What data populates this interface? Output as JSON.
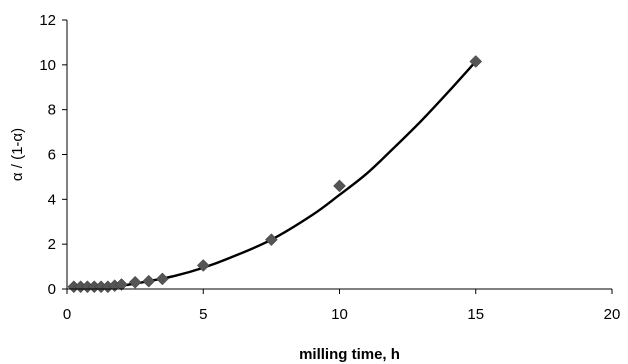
{
  "chart_data": {
    "type": "scatter",
    "xlabel": "milling time, h",
    "ylabel": "α / (1-α)",
    "xlim": [
      0,
      20
    ],
    "ylim": [
      0,
      12
    ],
    "x_ticks": [
      0,
      5,
      10,
      15,
      20
    ],
    "y_ticks": [
      0,
      2,
      4,
      6,
      8,
      10,
      12
    ],
    "grid": false,
    "series": [
      {
        "marker": "diamond",
        "color": "#555555",
        "points": [
          {
            "x": 0.25,
            "y": 0.1
          },
          {
            "x": 0.5,
            "y": 0.1
          },
          {
            "x": 0.75,
            "y": 0.1
          },
          {
            "x": 1.0,
            "y": 0.1
          },
          {
            "x": 1.25,
            "y": 0.1
          },
          {
            "x": 1.5,
            "y": 0.1
          },
          {
            "x": 1.75,
            "y": 0.15
          },
          {
            "x": 2.0,
            "y": 0.2
          },
          {
            "x": 2.5,
            "y": 0.3
          },
          {
            "x": 3.0,
            "y": 0.35
          },
          {
            "x": 3.5,
            "y": 0.45
          },
          {
            "x": 5.0,
            "y": 1.05
          },
          {
            "x": 7.5,
            "y": 2.2
          },
          {
            "x": 10.0,
            "y": 4.6
          },
          {
            "x": 15.0,
            "y": 10.15
          }
        ]
      },
      {
        "type": "line",
        "color": "#000000",
        "points": [
          {
            "x": 0.25,
            "y": 0.05
          },
          {
            "x": 1.0,
            "y": 0.06
          },
          {
            "x": 2.0,
            "y": 0.15
          },
          {
            "x": 3.0,
            "y": 0.35
          },
          {
            "x": 4.0,
            "y": 0.6
          },
          {
            "x": 5.0,
            "y": 0.95
          },
          {
            "x": 6.0,
            "y": 1.4
          },
          {
            "x": 7.5,
            "y": 2.2
          },
          {
            "x": 9.0,
            "y": 3.3
          },
          {
            "x": 10.0,
            "y": 4.2
          },
          {
            "x": 11.0,
            "y": 5.15
          },
          {
            "x": 12.0,
            "y": 6.3
          },
          {
            "x": 13.0,
            "y": 7.5
          },
          {
            "x": 14.0,
            "y": 8.8
          },
          {
            "x": 15.0,
            "y": 10.15
          }
        ]
      }
    ]
  }
}
